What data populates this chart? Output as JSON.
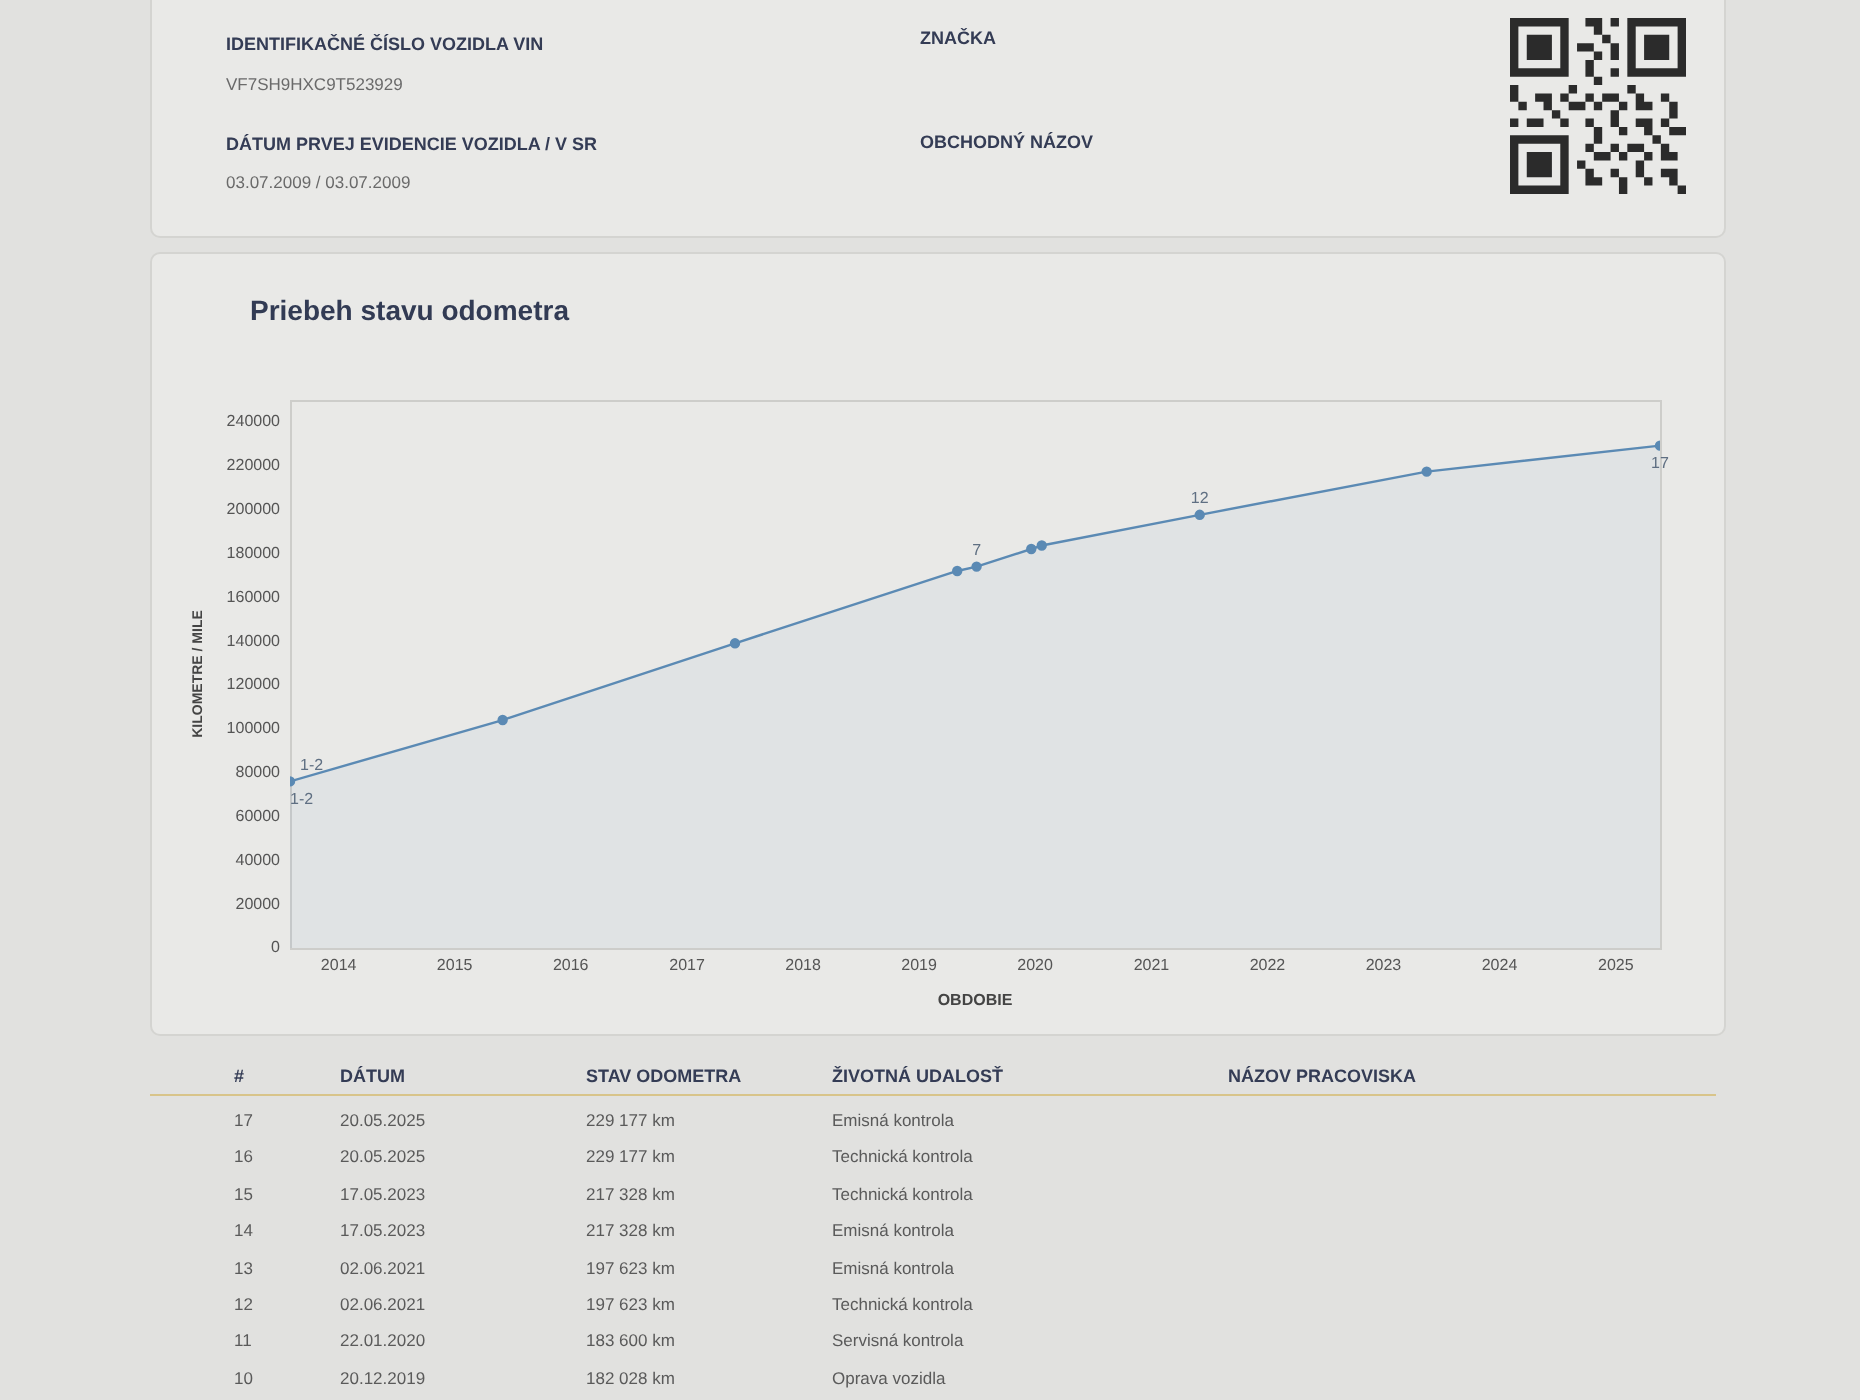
{
  "chart_data": {
    "type": "area",
    "title": "Priebeh stavu odometra",
    "xlabel": "OBDOBIE",
    "ylabel": "KILOMETRE / MILE",
    "x": [
      "2013-08",
      "2015-06",
      "2017-06",
      "2019-05",
      "2019-07",
      "2019-12-20",
      "2020-01-22",
      "2021-06-02",
      "2023-05-17",
      "2025-05-20"
    ],
    "values": [
      76000,
      104000,
      139000,
      172000,
      174000,
      182028,
      183600,
      197623,
      217328,
      229177
    ],
    "color": "#5b8ab4",
    "marker": "circle",
    "xlim": [
      "2013-08",
      "2025-05-20"
    ],
    "xticks": [
      "2014",
      "2015",
      "2016",
      "2017",
      "2018",
      "2019",
      "2020",
      "2021",
      "2022",
      "2023",
      "2024",
      "2025"
    ],
    "ylim": [
      0,
      250000
    ],
    "yticks": [
      0,
      20000,
      40000,
      60000,
      80000,
      100000,
      120000,
      140000,
      160000,
      180000,
      200000,
      220000,
      240000
    ],
    "annotations": [
      "IDENTIFIKAČNÉ ČÍSLO VOZIDLA VIN",
      "VF7SH9HXC9T523929",
      "DÁTUM PRVEJ EVIDENCIE VOZIDLA / V SR",
      "03.07.2009 / 03.07.2009",
      "ZNAČKA",
      "OBCHODNÝ NÁZOV",
      {
        "text": "1-2",
        "x": "2013-08",
        "y": 76000
      },
      {
        "text": "1-2",
        "x": "2013-08",
        "y": 76000
      },
      {
        "text": "7",
        "x": "2019-07",
        "y": 174000
      },
      {
        "text": "12",
        "x": "2021-06-02",
        "y": 197623
      },
      {
        "text": "17",
        "x": "2025-05-20",
        "y": 229177
      },
      "#",
      "DÁTUM",
      "STAV ODOMETRA",
      "ŽIVOTNÁ UDALOSŤ",
      "NÁZOV PRACOVISKA",
      "17",
      "20.05.2025",
      "229 177 km",
      "Emisná kontrola",
      "16",
      "20.05.2025",
      "229 177 km",
      "Technická kontrola",
      "15",
      "17.05.2023",
      "217 328 km",
      "Technická kontrola",
      "14",
      "17.05.2023",
      "217 328 km",
      "Emisná kontrola",
      "13",
      "02.06.2021",
      "197 623 km",
      "Emisná kontrola",
      "12",
      "02.06.2021",
      "197 623 km",
      "Technická kontrola",
      "11",
      "22.01.2020",
      "183 600 km",
      "Servisná kontrola",
      "10",
      "20.12.2019",
      "182 028 km",
      "Oprava vozidla"
    ]
  }
}
